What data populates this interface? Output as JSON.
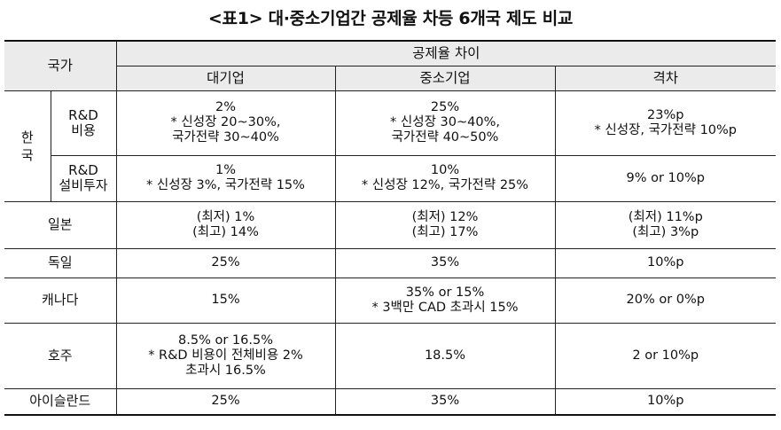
{
  "title": "<표1> 대·중소기업간 공제율 차등 6개국 제도 비교",
  "header": {
    "country": "국가",
    "gap_group": "공제율 차이",
    "large": "대기업",
    "sme": "중소기업",
    "diff": "격차"
  },
  "korea": {
    "label": [
      "한",
      "국"
    ],
    "rnd_cost": {
      "sub": [
        "R&D",
        "비용"
      ],
      "large": [
        "2%",
        "* 신성장 20~30%,",
        "국가전략 30~40%"
      ],
      "sme": [
        "25%",
        "* 신성장 30~40%,",
        "국가전략 40~50%"
      ],
      "diff": [
        "23%p",
        "* 신성장, 국가전략 10%p"
      ]
    },
    "rnd_facility": {
      "sub": [
        "R&D",
        "설비투자"
      ],
      "large": [
        "1%",
        "* 신성장 3%, 국가전략 15%"
      ],
      "sme": [
        "10%",
        "* 신성장 12%, 국가전략 25%"
      ],
      "diff": [
        "9% or 10%p"
      ]
    }
  },
  "rows": [
    {
      "country": "일본",
      "large": [
        "(최저) 1%",
        "(최고) 14%"
      ],
      "sme": [
        "(최저) 12%",
        "(최고) 17%"
      ],
      "diff": [
        "(최저) 11%p",
        "(최고) 3%p"
      ]
    },
    {
      "country": "독일",
      "large": [
        "25%"
      ],
      "sme": [
        "35%"
      ],
      "diff": [
        "10%p"
      ]
    },
    {
      "country": "캐나다",
      "large": [
        "15%"
      ],
      "sme": [
        "35% or 15%",
        "* 3백만 CAD 초과시 15%"
      ],
      "diff": [
        "20% or 0%p"
      ]
    },
    {
      "country": "호주",
      "large": [
        "8.5% or 16.5%",
        "* R&D 비용이 전체비용 2%",
        "초과시 16.5%"
      ],
      "sme": [
        "18.5%"
      ],
      "diff": [
        "2 or 10%p"
      ]
    },
    {
      "country": "아이슬란드",
      "large": [
        "25%"
      ],
      "sme": [
        "35%"
      ],
      "diff": [
        "10%p"
      ]
    }
  ]
}
